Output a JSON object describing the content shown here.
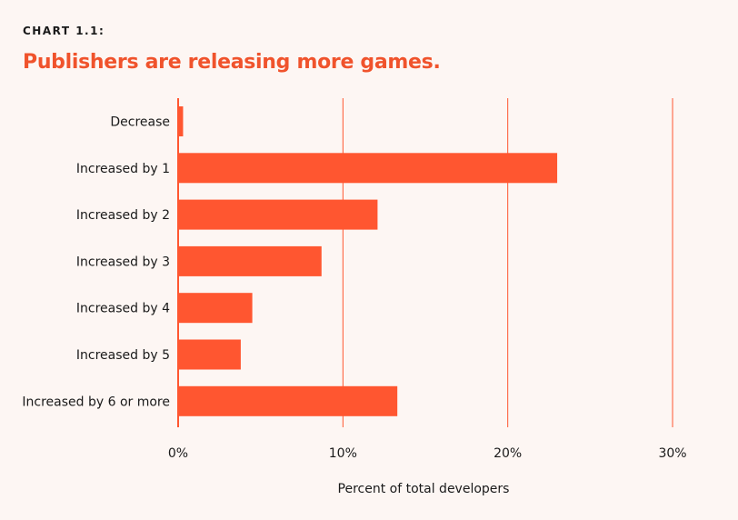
{
  "header": {
    "kicker": "CHART 1.1:",
    "title": "Publishers are releasing more games."
  },
  "colors": {
    "background": "#fdf6f3",
    "accent": "#f0532c",
    "bar": "#ff5630",
    "text": "#1a1a1a"
  },
  "chart_data": {
    "type": "bar",
    "orientation": "horizontal",
    "title": "Publishers are releasing more games.",
    "categories": [
      "Decrease",
      "Increased by 1",
      "Increased by 2",
      "Increased by 3",
      "Increased by 4",
      "Increased by 5",
      "Increased by 6 or more"
    ],
    "values": [
      0.3,
      23.0,
      12.1,
      8.7,
      4.5,
      3.8,
      13.3
    ],
    "xlabel": "Percent of total developers",
    "ylabel": "",
    "xlim": [
      0,
      30
    ],
    "xticks": [
      0,
      10,
      20,
      30
    ],
    "xtick_labels": [
      "0%",
      "10%",
      "20%",
      "30%"
    ],
    "grid": true
  }
}
